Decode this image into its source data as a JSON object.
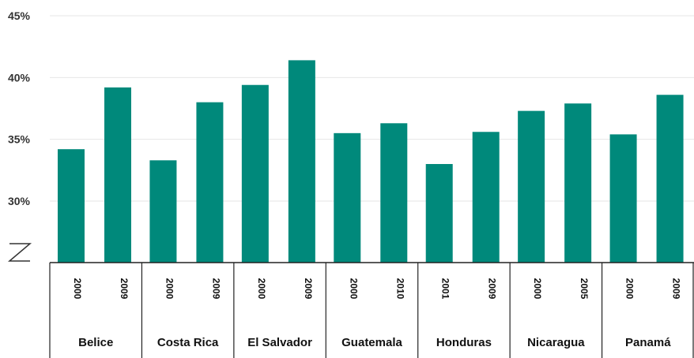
{
  "chart_data": {
    "type": "bar",
    "title": "",
    "xlabel": "",
    "ylabel": "",
    "ylim": [
      28,
      45
    ],
    "yticks": [
      30,
      35,
      40,
      45
    ],
    "ytick_labels": [
      "30%",
      "35%",
      "40%",
      "45%"
    ],
    "axis_break": true,
    "grid": true,
    "bar_color": "#00897B",
    "groups": [
      {
        "country": "Belice",
        "years": [
          "2000",
          "2009"
        ],
        "values": [
          34.2,
          39.2
        ]
      },
      {
        "country": "Costa Rica",
        "years": [
          "2000",
          "2009"
        ],
        "values": [
          33.3,
          38.0
        ]
      },
      {
        "country": "El Salvador",
        "years": [
          "2000",
          "2009"
        ],
        "values": [
          39.4,
          41.4
        ]
      },
      {
        "country": "Guatemala",
        "years": [
          "2000",
          "2010"
        ],
        "values": [
          35.5,
          36.3
        ]
      },
      {
        "country": "Honduras",
        "years": [
          "2001",
          "2009"
        ],
        "values": [
          33.0,
          35.6
        ]
      },
      {
        "country": "Nicaragua",
        "years": [
          "2000",
          "2005"
        ],
        "values": [
          37.3,
          37.9
        ]
      },
      {
        "country": "Panamá",
        "years": [
          "2000",
          "2009"
        ],
        "values": [
          35.4,
          38.6
        ]
      }
    ]
  }
}
